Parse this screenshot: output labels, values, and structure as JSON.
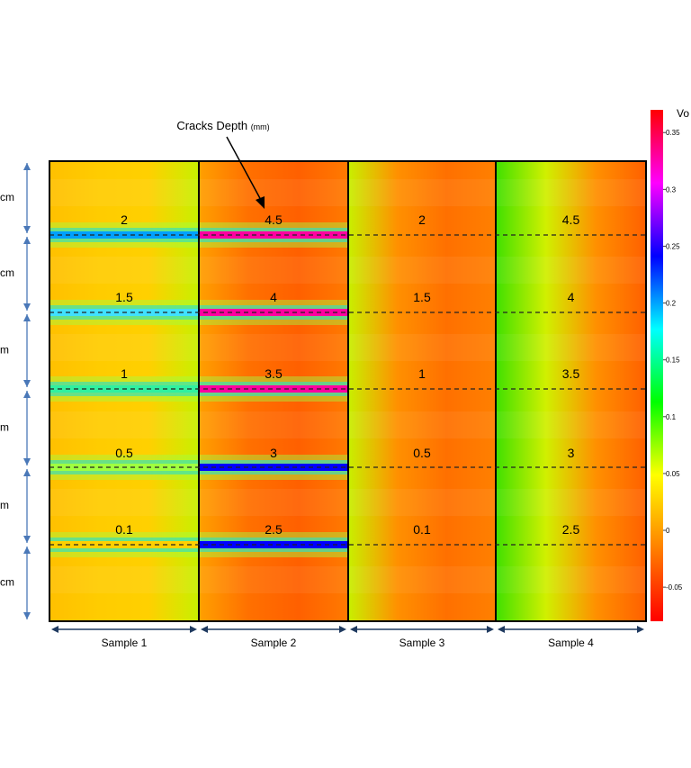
{
  "chart_data": {
    "type": "heatmap",
    "annotation": "Cracks Depth",
    "annotation_unit": "(mm)",
    "colorbar": {
      "title": "Vo",
      "ticks": [
        "0.35",
        "0.3",
        "0.25",
        "0.2",
        "0.15",
        "0.1",
        "0.05",
        "0",
        "-0.05"
      ],
      "range": [
        -0.08,
        0.37
      ],
      "colors": [
        "#ff0000",
        "#ff8000",
        "#ffff00",
        "#00ff00",
        "#00ffff",
        "#0000ff",
        "#ff00ff",
        "#ff0000"
      ]
    },
    "left_axis_labels": [
      "cm",
      "cm",
      "m",
      "m",
      "m",
      "cm"
    ],
    "samples": [
      {
        "name": "Sample 1",
        "base_colors": [
          "#ffc000",
          "#ffcc00",
          "#ffd000",
          "#c8f000"
        ],
        "crack_colors": [
          "#00a0ff",
          "#40e0ff",
          "#30f0a0",
          "#a0ff40",
          "#ffd000"
        ],
        "cracks": [
          {
            "label": "2"
          },
          {
            "label": "1.5"
          },
          {
            "label": "1"
          },
          {
            "label": "0.5"
          },
          {
            "label": "0.1"
          }
        ]
      },
      {
        "name": "Sample 2",
        "base_colors": [
          "#ffa000",
          "#ff7000",
          "#ff6000",
          "#ff7a00"
        ],
        "crack_colors": [
          "#ff00a0",
          "#ff00a0",
          "#ff00a0",
          "#0000ff",
          "#0000ff"
        ],
        "cracks": [
          {
            "label": "4.5"
          },
          {
            "label": "4"
          },
          {
            "label": "3.5"
          },
          {
            "label": "3"
          },
          {
            "label": "2.5"
          }
        ]
      },
      {
        "name": "Sample 3",
        "base_colors": [
          "#c8f000",
          "#ff9000",
          "#ff7000",
          "#ff8000"
        ],
        "crack_colors": [],
        "cracks": [
          {
            "label": "2"
          },
          {
            "label": "1.5"
          },
          {
            "label": "1"
          },
          {
            "label": "0.5"
          },
          {
            "label": "0.1"
          }
        ]
      },
      {
        "name": "Sample 4",
        "base_colors": [
          "#40e000",
          "#d0f000",
          "#ff9000",
          "#ff6000"
        ],
        "crack_colors": [],
        "cracks": [
          {
            "label": "4.5"
          },
          {
            "label": "4"
          },
          {
            "label": "3.5"
          },
          {
            "label": "3"
          },
          {
            "label": "2.5"
          }
        ]
      }
    ]
  }
}
